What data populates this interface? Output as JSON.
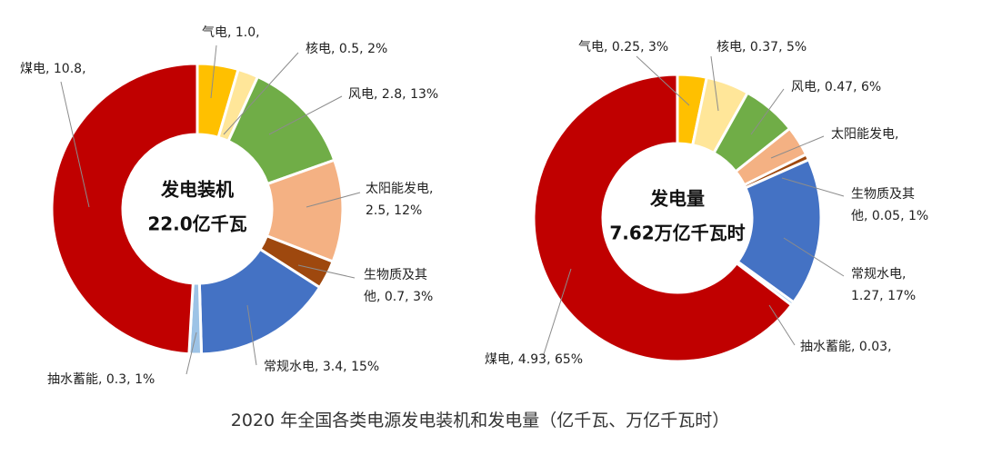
{
  "caption": "2020 年全国各类电源发电装机和发电量（亿千瓦、万亿千瓦时）",
  "chart_data": [
    {
      "type": "pie",
      "style": "donut",
      "center_text": [
        "发电装机",
        "22.0亿千瓦"
      ],
      "unit": "亿千瓦",
      "slices": [
        {
          "name": "气电",
          "value": 1.0,
          "color": "#FFC000",
          "label_lines": [
            "气电, 1.0,"
          ]
        },
        {
          "name": "核电",
          "value": 0.5,
          "color": "#FFE699",
          "label_lines": [
            "核电, 0.5, 2%"
          ]
        },
        {
          "name": "风电",
          "value": 2.8,
          "color": "#70AD47",
          "label_lines": [
            "风电, 2.8, 13%"
          ]
        },
        {
          "name": "太阳能发电",
          "value": 2.5,
          "color": "#F4B183",
          "label_lines": [
            "太阳能发电,",
            "2.5, 12%"
          ]
        },
        {
          "name": "生物质及其他",
          "value": 0.7,
          "color": "#9E480E",
          "label_lines": [
            "生物质及其",
            "他, 0.7, 3%"
          ]
        },
        {
          "name": "常规水电",
          "value": 3.4,
          "color": "#4472C4",
          "label_lines": [
            "常规水电, 3.4, 15%"
          ]
        },
        {
          "name": "抽水蓄能",
          "value": 0.3,
          "color": "#9DC3E6",
          "label_lines": [
            "抽水蓄能, 0.3, 1%"
          ]
        },
        {
          "name": "煤电",
          "value": 10.8,
          "color": "#C00000",
          "label_lines": [
            "煤电, 10.8,"
          ]
        }
      ]
    },
    {
      "type": "pie",
      "style": "donut",
      "center_text": [
        "发电量",
        "7.62万亿千瓦时"
      ],
      "unit": "万亿千瓦时",
      "slices": [
        {
          "name": "气电",
          "value": 0.25,
          "color": "#FFC000",
          "label_lines": [
            "气电, 0.25, 3%"
          ]
        },
        {
          "name": "核电",
          "value": 0.37,
          "color": "#FFE699",
          "label_lines": [
            "核电, 0.37, 5%"
          ]
        },
        {
          "name": "风电",
          "value": 0.47,
          "color": "#70AD47",
          "label_lines": [
            "风电, 0.47, 6%"
          ]
        },
        {
          "name": "太阳能发电",
          "value": 0.26,
          "color": "#F4B183",
          "label_lines": [
            "太阳能发电,"
          ]
        },
        {
          "name": "生物质及其他",
          "value": 0.05,
          "color": "#9E480E",
          "label_lines": [
            "生物质及其",
            "他, 0.05, 1%"
          ]
        },
        {
          "name": "常规水电",
          "value": 1.27,
          "color": "#4472C4",
          "label_lines": [
            "常规水电,",
            "1.27, 17%"
          ]
        },
        {
          "name": "抽水蓄能",
          "value": 0.03,
          "color": "#9DC3E6",
          "label_lines": [
            "抽水蓄能, 0.03,"
          ]
        },
        {
          "name": "煤电",
          "value": 4.93,
          "color": "#C00000",
          "label_lines": [
            "煤电, 4.93, 65%"
          ]
        }
      ]
    }
  ]
}
